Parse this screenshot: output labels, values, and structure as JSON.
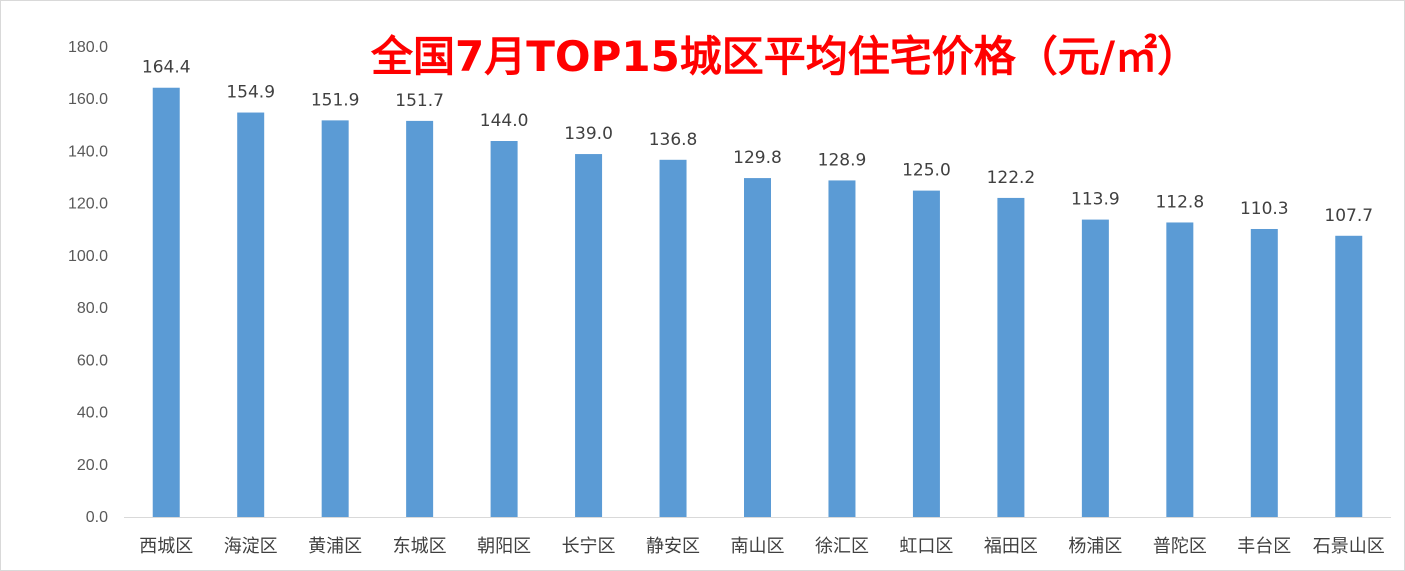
{
  "chart_data": {
    "type": "bar",
    "title": "全国7月TOP15城区平均住宅价格（元/㎡）",
    "categories": [
      "西城区",
      "海淀区",
      "黄浦区",
      "东城区",
      "朝阳区",
      "长宁区",
      "静安区",
      "南山区",
      "徐汇区",
      "虹口区",
      "福田区",
      "杨浦区",
      "普陀区",
      "丰台区",
      "石景山区"
    ],
    "series": [
      {
        "values": [
          164.4,
          154.9,
          151.9,
          151.7,
          144.0,
          139.0,
          136.8,
          129.8,
          128.9,
          125.0,
          122.2,
          113.9,
          112.8,
          110.3,
          107.7
        ]
      }
    ],
    "data_labels": [
      "164.4",
      "154.9",
      "151.9",
      "151.7",
      "144.0",
      "139.0",
      "136.8",
      "129.8",
      "128.9",
      "125.0",
      "122.2",
      "113.9",
      "112.8",
      "110.3",
      "107.7"
    ],
    "yticks": [
      "0.0",
      "20.0",
      "40.0",
      "60.0",
      "80.0",
      "100.0",
      "120.0",
      "140.0",
      "160.0",
      "180.0"
    ],
    "ylim": [
      0,
      180
    ],
    "grid": false,
    "legend": "none",
    "bar_color": "#5b9bd5",
    "title_color": "#ff0000"
  }
}
